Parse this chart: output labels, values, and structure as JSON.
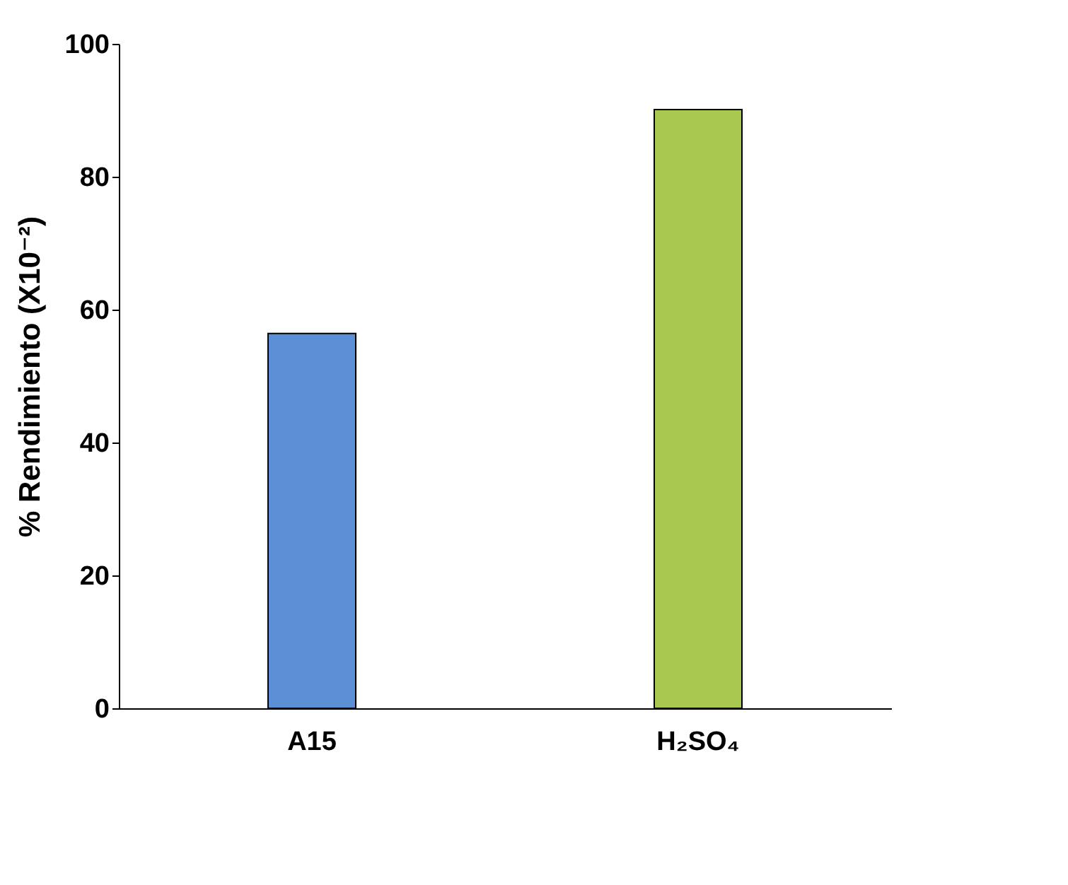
{
  "chart_data": {
    "type": "bar",
    "ylabel": "% Rendimiento (X10⁻²)",
    "categories": [
      "A15",
      "H₂SO₄"
    ],
    "values": [
      56.4,
      90.1
    ],
    "colors": [
      "#5b8fd6",
      "#a8c850"
    ],
    "ylim": [
      0,
      100
    ],
    "yticks": [
      0,
      20,
      40,
      60,
      80,
      100
    ],
    "grid": false
  }
}
